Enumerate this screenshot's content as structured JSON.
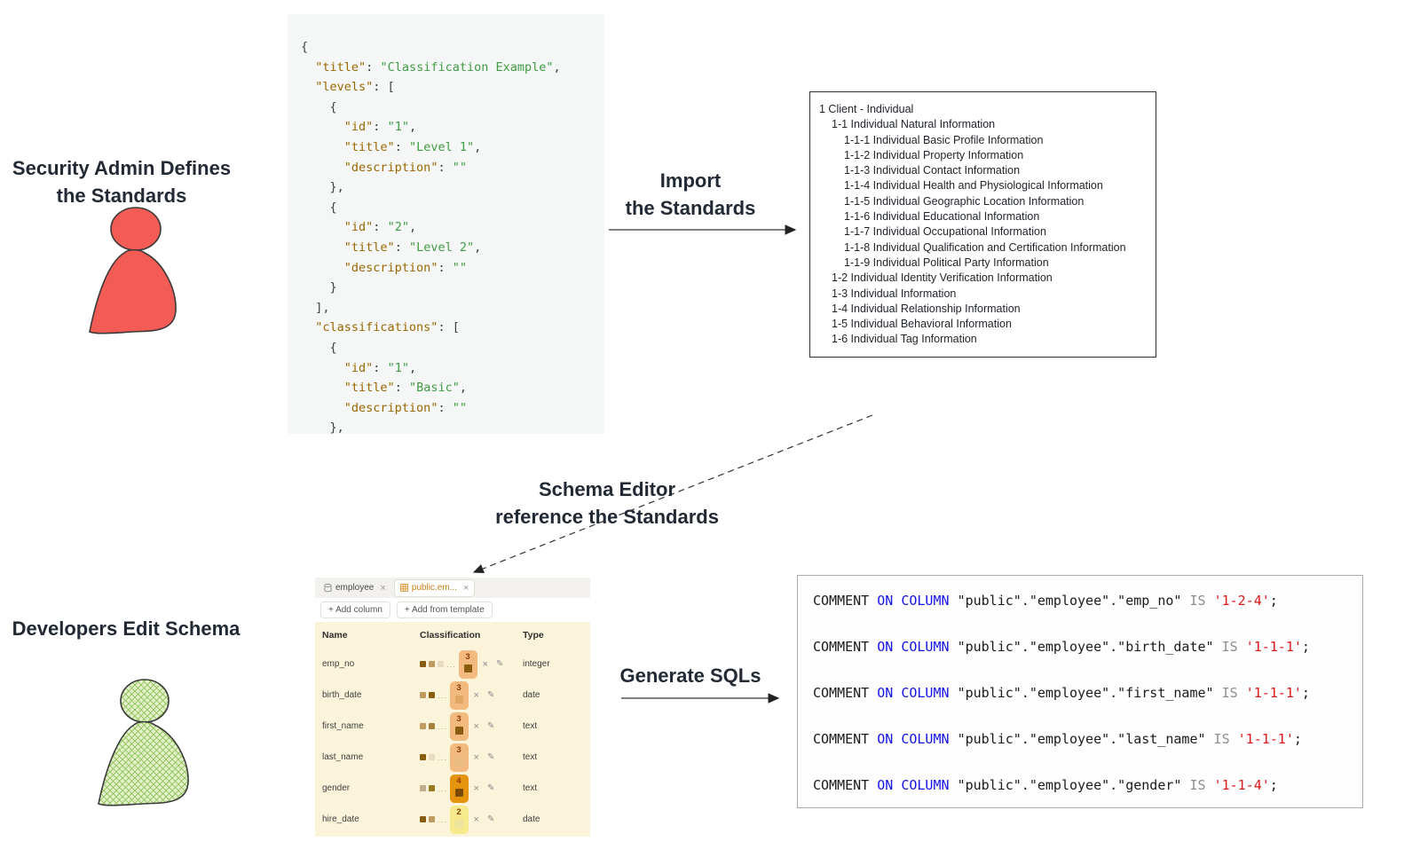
{
  "labels": {
    "admin": [
      "Security Admin Defines",
      "the Standards"
    ],
    "import_arrow": [
      "Import",
      "the Standards"
    ],
    "reference_arrow": [
      "Schema Editor",
      "reference the Standards"
    ],
    "developers": "Developers Edit Schema",
    "generate_arrow": "Generate SQLs"
  },
  "colors": {
    "admin_icon_fill": "#f25c54",
    "developer_icon_fill": "#e4f2cc",
    "developer_icon_hatch": "#8cc152",
    "json_key": "#9a6700",
    "json_string": "#3f9b43",
    "sql_keyword_blue": "#1414e8",
    "sql_literal_red": "#e01616",
    "table_background_cream": "#fbf4db"
  },
  "json_code": {
    "lines": [
      [
        [
          "p",
          "{"
        ]
      ],
      [
        [
          "p",
          "  "
        ],
        [
          "k",
          "\"title\""
        ],
        [
          "p",
          ": "
        ],
        [
          "s",
          "\"Classification Example\""
        ],
        [
          "p",
          ","
        ]
      ],
      [
        [
          "p",
          "  "
        ],
        [
          "k",
          "\"levels\""
        ],
        [
          "p",
          ": ["
        ]
      ],
      [
        [
          "p",
          "    {"
        ]
      ],
      [
        [
          "p",
          "      "
        ],
        [
          "k",
          "\"id\""
        ],
        [
          "p",
          ": "
        ],
        [
          "s",
          "\"1\""
        ],
        [
          "p",
          ","
        ]
      ],
      [
        [
          "p",
          "      "
        ],
        [
          "k",
          "\"title\""
        ],
        [
          "p",
          ": "
        ],
        [
          "s",
          "\"Level 1\""
        ],
        [
          "p",
          ","
        ]
      ],
      [
        [
          "p",
          "      "
        ],
        [
          "k",
          "\"description\""
        ],
        [
          "p",
          ": "
        ],
        [
          "s",
          "\"\""
        ]
      ],
      [
        [
          "p",
          "    },"
        ]
      ],
      [
        [
          "p",
          "    {"
        ]
      ],
      [
        [
          "p",
          "      "
        ],
        [
          "k",
          "\"id\""
        ],
        [
          "p",
          ": "
        ],
        [
          "s",
          "\"2\""
        ],
        [
          "p",
          ","
        ]
      ],
      [
        [
          "p",
          "      "
        ],
        [
          "k",
          "\"title\""
        ],
        [
          "p",
          ": "
        ],
        [
          "s",
          "\"Level 2\""
        ],
        [
          "p",
          ","
        ]
      ],
      [
        [
          "p",
          "      "
        ],
        [
          "k",
          "\"description\""
        ],
        [
          "p",
          ": "
        ],
        [
          "s",
          "\"\""
        ]
      ],
      [
        [
          "p",
          "    }"
        ]
      ],
      [
        [
          "p",
          "  ],"
        ]
      ],
      [
        [
          "p",
          "  "
        ],
        [
          "k",
          "\"classifications\""
        ],
        [
          "p",
          ": ["
        ]
      ],
      [
        [
          "p",
          "    {"
        ]
      ],
      [
        [
          "p",
          "      "
        ],
        [
          "k",
          "\"id\""
        ],
        [
          "p",
          ": "
        ],
        [
          "s",
          "\"1\""
        ],
        [
          "p",
          ","
        ]
      ],
      [
        [
          "p",
          "      "
        ],
        [
          "k",
          "\"title\""
        ],
        [
          "p",
          ": "
        ],
        [
          "s",
          "\"Basic\""
        ],
        [
          "p",
          ","
        ]
      ],
      [
        [
          "p",
          "      "
        ],
        [
          "k",
          "\"description\""
        ],
        [
          "p",
          ": "
        ],
        [
          "s",
          "\"\""
        ]
      ],
      [
        [
          "p",
          "    },"
        ]
      ]
    ]
  },
  "tree": {
    "items": [
      {
        "indent": 0,
        "text": "1 Client - Individual"
      },
      {
        "indent": 1,
        "text": "1-1 Individual Natural Information"
      },
      {
        "indent": 2,
        "text": "1-1-1 Individual Basic Profile Information"
      },
      {
        "indent": 2,
        "text": "1-1-2 Individual Property Information"
      },
      {
        "indent": 2,
        "text": "1-1-3 Individual Contact Information"
      },
      {
        "indent": 2,
        "text": "1-1-4 Individual Health and Physiological Information"
      },
      {
        "indent": 2,
        "text": "1-1-5 Individual Geographic Location Information"
      },
      {
        "indent": 2,
        "text": "1-1-6 Individual Educational Information"
      },
      {
        "indent": 2,
        "text": "1-1-7 Individual Occupational Information"
      },
      {
        "indent": 2,
        "text": "1-1-8 Individual Qualification and Certification Information"
      },
      {
        "indent": 2,
        "text": "1-1-9 Individual Political Party Information"
      },
      {
        "indent": 1,
        "text": "1-2 Individual Identity Verification Information"
      },
      {
        "indent": 1,
        "text": "1-3 Individual Information"
      },
      {
        "indent": 1,
        "text": "1-4 Individual Relationship Information"
      },
      {
        "indent": 1,
        "text": "1-5 Individual Behavioral Information"
      },
      {
        "indent": 1,
        "text": "1-6 Individual Tag Information"
      }
    ]
  },
  "schema_editor": {
    "tabs": [
      {
        "label": "employee",
        "icon": "database-icon",
        "active": false
      },
      {
        "label": "public.em...",
        "icon": "table-icon",
        "active": true
      }
    ],
    "buttons": [
      "+ Add column",
      "+ Add from template"
    ],
    "columns": [
      "Name",
      "Classification",
      "Type"
    ],
    "rows": [
      {
        "name": "emp_no",
        "type": "integer",
        "badge": {
          "num": "3",
          "bg": "#f2ba7e",
          "inner": "#8a5c10"
        },
        "chips": [
          "#8a5c10",
          "#c19a62",
          "#e7dcc2"
        ]
      },
      {
        "name": "birth_date",
        "type": "date",
        "badge": {
          "num": "3",
          "bg": "#f2ba7e",
          "inner": "#dfa763"
        },
        "chips": [
          "#c19a62",
          "#8a5c10"
        ]
      },
      {
        "name": "first_name",
        "type": "text",
        "badge": {
          "num": "3",
          "bg": "#f2ba7e",
          "inner": "#8a5c10"
        },
        "chips": [
          "#c19a62",
          "#a87f3e"
        ]
      },
      {
        "name": "last_name",
        "type": "text",
        "badge": {
          "num": "3",
          "bg": "#f2ba7e",
          "inner": "#e8bc82"
        },
        "chips": [
          "#8a5c10",
          "#e7dcc2"
        ]
      },
      {
        "name": "gender",
        "type": "text",
        "badge": {
          "num": "4",
          "bg": "#e5940e",
          "inner": "#7a4a00"
        },
        "chips": [
          "#c1ad8a",
          "#9a7a20"
        ]
      },
      {
        "name": "hire_date",
        "type": "date",
        "badge": {
          "num": "2",
          "bg": "#f6e98e",
          "inner": "#ede3a0"
        },
        "chips": [
          "#8a5c10",
          "#c19a62"
        ]
      }
    ]
  },
  "sql": {
    "keyword1": "COMMENT",
    "keyword2": "ON COLUMN",
    "schema": "public",
    "table": "employee",
    "is_keyword": "IS",
    "rows": [
      {
        "column": "emp_no",
        "code": "1-2-4"
      },
      {
        "column": "birth_date",
        "code": "1-1-1"
      },
      {
        "column": "first_name",
        "code": "1-1-1"
      },
      {
        "column": "last_name",
        "code": "1-1-1"
      },
      {
        "column": "gender",
        "code": "1-1-4"
      }
    ]
  }
}
